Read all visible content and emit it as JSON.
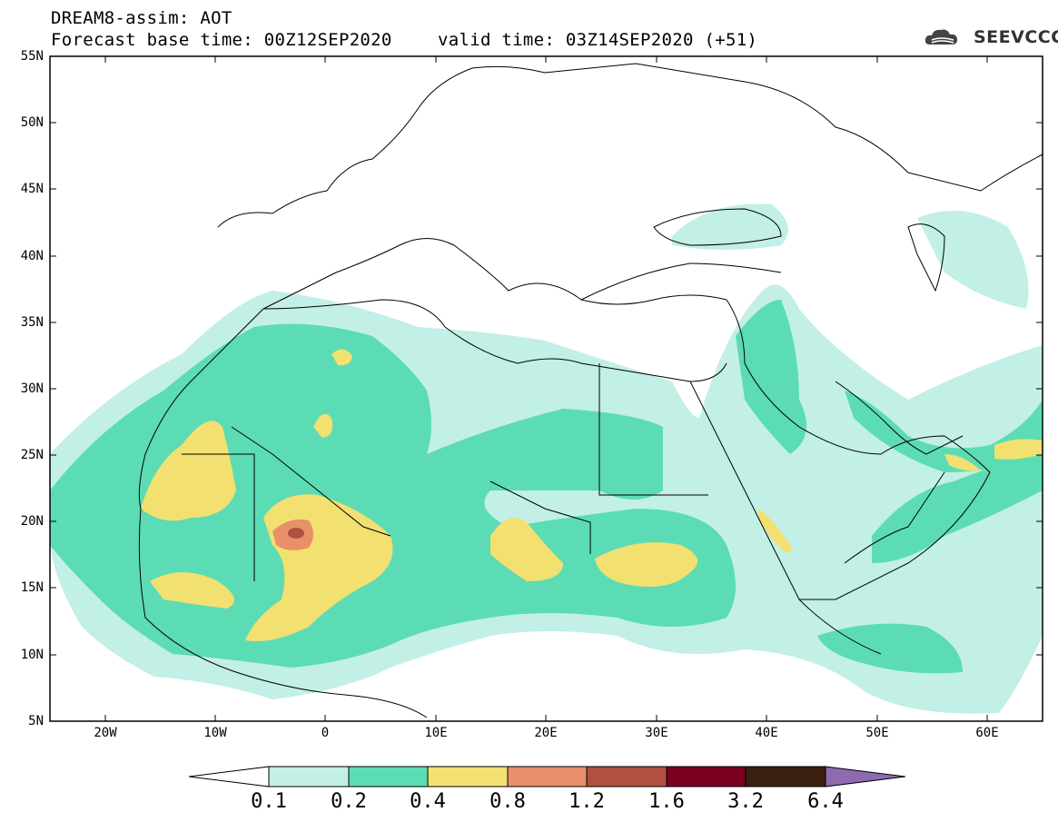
{
  "title": {
    "model": "DREAM8-assim: AOT",
    "forecast_base": "Forecast base time: 00Z12SEP2020",
    "valid_time": "valid time: 03Z14SEP2020 (+51)"
  },
  "logo": {
    "text": "SEEVCCC",
    "icon": "cloud-logo-icon"
  },
  "axes": {
    "lat_labels": [
      "55N",
      "50N",
      "45N",
      "40N",
      "35N",
      "30N",
      "25N",
      "20N",
      "15N",
      "10N",
      "5N"
    ],
    "lon_labels": [
      "20W",
      "10W",
      "0",
      "10E",
      "20E",
      "30E",
      "40E",
      "50E",
      "60E"
    ],
    "lat_range": [
      5,
      55
    ],
    "lon_range": [
      -25,
      65
    ]
  },
  "colorbar": {
    "labels": [
      "0.1",
      "0.2",
      "0.4",
      "0.8",
      "1.2",
      "1.6",
      "3.2",
      "6.4"
    ],
    "colors": [
      "#c2efe6",
      "#5cdcb4",
      "#f2e070",
      "#e8906a",
      "#b05040",
      "#7a0020",
      "#3c2010"
    ],
    "under_color": "#ffffff",
    "over_color": "#8e6aae"
  },
  "field_colors": {
    "aot_0_1": "#c2efe6",
    "aot_0_2": "#5cdcb4",
    "aot_0_4": "#f2e070",
    "aot_0_8": "#e8906a",
    "aot_1_2": "#b05040"
  }
}
